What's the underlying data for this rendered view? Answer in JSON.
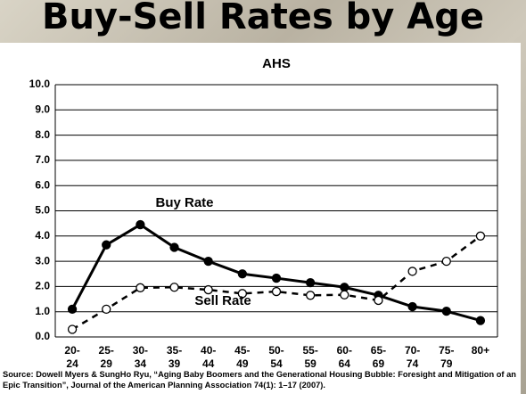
{
  "slide_title": "Buy-Sell Rates by Age",
  "chart_data": {
    "type": "line",
    "title": "AHS",
    "categories": [
      "20-24",
      "25-29",
      "30-34",
      "35-39",
      "40-44",
      "45-49",
      "50-54",
      "55-59",
      "60-64",
      "65-69",
      "70-74",
      "75-79",
      "80+"
    ],
    "series": [
      {
        "name": "Buy Rate",
        "color": "#000000",
        "dashed": false,
        "filled": true,
        "values": [
          1.1,
          3.65,
          4.45,
          3.55,
          3.0,
          2.5,
          2.33,
          2.15,
          1.97,
          1.65,
          1.2,
          1.02,
          0.65
        ]
      },
      {
        "name": "Sell Rate",
        "color": "#000000",
        "dashed": true,
        "filled": false,
        "values": [
          0.3,
          1.1,
          1.95,
          1.97,
          1.87,
          1.72,
          1.8,
          1.65,
          1.67,
          1.45,
          2.6,
          3.0,
          4.0
        ]
      }
    ],
    "ylim": [
      0,
      10
    ],
    "yticks": [
      {
        "value": 0,
        "label": "0.0"
      },
      {
        "value": 1,
        "label": "1.0"
      },
      {
        "value": 2,
        "label": "2.0"
      },
      {
        "value": 3,
        "label": "3.0"
      },
      {
        "value": 4,
        "label": "4.0"
      },
      {
        "value": 5,
        "label": "5.0"
      },
      {
        "value": 6,
        "label": "6.0"
      },
      {
        "value": 7,
        "label": "7.0"
      },
      {
        "value": 8,
        "label": "8.0"
      },
      {
        "value": 9,
        "label": "9.0"
      },
      {
        "value": 10,
        "label": "10.0"
      }
    ],
    "grid": true
  },
  "source": "Source: Dowell Myers & SungHo Ryu, “Aging Baby Boomers and the Generational Housing Bubble: Foresight and Mitigation of an Epic Transition”, Journal of the American Planning Association 74(1): 1–17 (2007)."
}
